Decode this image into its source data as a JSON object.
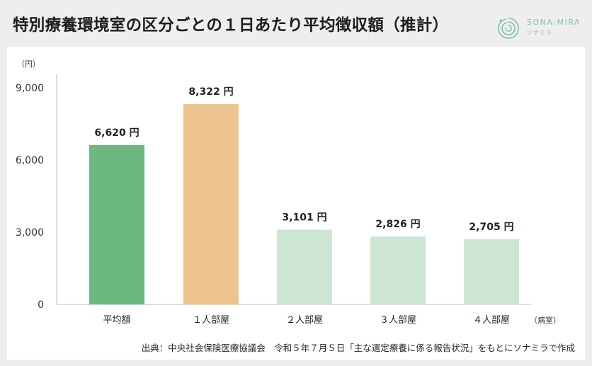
{
  "header": {
    "title": "特別療養環境室の区分ごとの１日あたり平均徴収額（推計）"
  },
  "brand": {
    "name": "SONA-MIRA",
    "sub": "ソナミラ",
    "accent_color": "#7fc6a6",
    "icon": "spiral-logo-icon"
  },
  "chart_data": {
    "type": "bar",
    "categories": [
      "平均額",
      "１人部屋",
      "２人部屋",
      "３人部屋",
      "４人部屋"
    ],
    "values": [
      6620,
      8322,
      3101,
      2826,
      2705
    ],
    "value_labels": [
      "6,620 円",
      "8,322 円",
      "3,101 円",
      "2,826 円",
      "2,705 円"
    ],
    "colors": [
      "#6db87e",
      "#edc38e",
      "#cde6d3",
      "#cde6d3",
      "#cde6d3"
    ],
    "ylabel": "（円）",
    "xlabel": "（病室）",
    "ylim": [
      0,
      9000
    ],
    "yticks": [
      0,
      3000,
      6000,
      9000
    ],
    "ytick_labels": [
      "0",
      "3,000",
      "6,000",
      "9,000"
    ],
    "grid": false,
    "legend": "none"
  },
  "footer": {
    "source": "出典：中央社会保険医療協議会　令和５年７月５日「主な選定療養に係る報告状況」をもとにソナミラで作成"
  }
}
